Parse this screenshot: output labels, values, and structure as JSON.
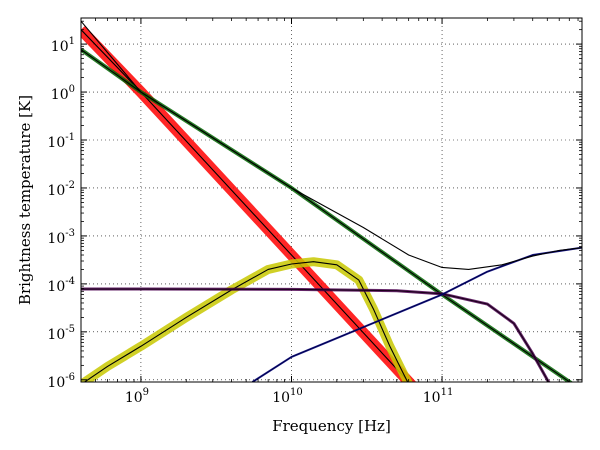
{
  "chart_data": {
    "type": "line",
    "title": "",
    "xlabel": "Frequency [Hz]",
    "ylabel": "Brightness temperature [K]",
    "x_scale": "log",
    "y_scale": "log",
    "xlim": [
      400000000.0,
      850000000000.0
    ],
    "ylim": [
      9e-07,
      35
    ],
    "grid": true,
    "x_ticks": [
      {
        "value": 1000000000.0,
        "base": "10",
        "exp": "9"
      },
      {
        "value": 10000000000.0,
        "base": "10",
        "exp": "10"
      },
      {
        "value": 100000000000.0,
        "base": "10",
        "exp": "11"
      }
    ],
    "y_ticks": [
      {
        "value": 10,
        "base": "10",
        "exp": "1"
      },
      {
        "value": 1,
        "base": "10",
        "exp": "0"
      },
      {
        "value": 0.1,
        "base": "10",
        "exp": "-1"
      },
      {
        "value": 0.01,
        "base": "10",
        "exp": "-2"
      },
      {
        "value": 0.001,
        "base": "10",
        "exp": "-3"
      },
      {
        "value": 0.0001,
        "base": "10",
        "exp": "-4"
      },
      {
        "value": 1e-05,
        "base": "10",
        "exp": "-5"
      },
      {
        "value": 1e-06,
        "base": "10",
        "exp": "-6"
      }
    ],
    "series": [
      {
        "color": "#ff0000",
        "band": true,
        "band_width": 11,
        "line_color": "#000000",
        "x": [
          400000000.0,
          1000000000.0,
          10000000000.0,
          100000000000.0
        ],
        "y": [
          20,
          1.0,
          0.0004,
          1.6e-07
        ]
      },
      {
        "color": "#006400",
        "band": true,
        "band_width": 4,
        "line_color": "#000000",
        "x": [
          400000000.0,
          1000000000.0,
          10000000000.0,
          100000000000.0,
          850000000000.0
        ],
        "y": [
          7.7,
          1.0,
          0.01,
          6e-05,
          6e-07
        ]
      },
      {
        "color": "#c8c800",
        "band": true,
        "band_width": 9,
        "line_color": "#000000",
        "x": [
          400000000.0,
          600000000.0,
          1000000000.0,
          2000000000.0,
          4000000000.0,
          7000000000.0,
          10000000000.0,
          14000000000.0,
          20000000000.0,
          28000000000.0,
          35000000000.0,
          45000000000.0,
          55000000000.0,
          65000000000.0
        ],
        "y": [
          8e-07,
          1.9e-06,
          5e-06,
          2e-05,
          7.5e-05,
          0.0002,
          0.00026,
          0.00029,
          0.00025,
          0.00012,
          3e-05,
          5e-06,
          1.4e-06,
          5e-07
        ]
      },
      {
        "color": "#4b0050",
        "band": true,
        "band_width": 3,
        "line_color": "#1a001a",
        "x": [
          400000000.0,
          1000000000.0,
          10000000000.0,
          50000000000.0,
          100000000000.0,
          200000000000.0,
          300000000000.0,
          400000000000.0,
          500000000000.0,
          580000000000.0
        ],
        "y": [
          7.8e-05,
          7.8e-05,
          7.7e-05,
          7.2e-05,
          6.2e-05,
          3.8e-05,
          1.5e-05,
          3.5e-06,
          1e-06,
          5e-07
        ]
      },
      {
        "color": "#000080",
        "band": true,
        "band_width": 2,
        "line_color": "#000050",
        "x": [
          5500000000.0,
          10000000000.0,
          100000000000.0,
          200000000000.0,
          400000000000.0,
          850000000000.0
        ],
        "y": [
          9e-07,
          3e-06,
          6e-05,
          0.00018,
          0.0004,
          0.00057
        ]
      },
      {
        "color": "#000000",
        "band": false,
        "x": [
          400000000.0,
          1000000000.0,
          10000000000.0,
          30000000000.0,
          60000000000.0,
          100000000000.0,
          150000000000.0,
          250000000000.0,
          400000000000.0,
          600000000000.0,
          850000000000.0
        ],
        "y": [
          30,
          1.0,
          0.01,
          0.0015,
          0.0004,
          0.00022,
          0.0002,
          0.00025,
          0.00038,
          0.0005,
          0.00057
        ]
      }
    ]
  }
}
